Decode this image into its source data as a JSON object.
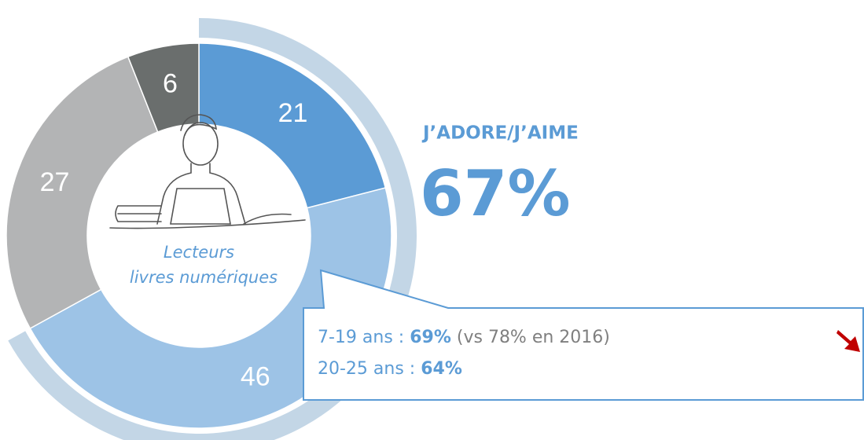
{
  "chart_data": {
    "type": "donut",
    "slices": [
      {
        "name": null,
        "value": 21,
        "color": "#5b9bd5"
      },
      {
        "name": null,
        "value": 46,
        "color": "#9dc3e6"
      },
      {
        "name": null,
        "value": 27,
        "color": "#b3b4b5"
      },
      {
        "name": null,
        "value": 6,
        "color": "#6a6e6d"
      }
    ],
    "center_label": [
      "Lecteurs",
      "livres numériques"
    ],
    "highlight": {
      "label": "J’ADORE/J’AIME",
      "value": 67,
      "value_label": "67%",
      "color": "#c3d6e6"
    },
    "callout": {
      "lines": [
        [
          "7-19 ans : ",
          "69%",
          " (vs 78% en 2016)"
        ],
        [
          "20-25 ans : ",
          "64%"
        ]
      ]
    }
  }
}
